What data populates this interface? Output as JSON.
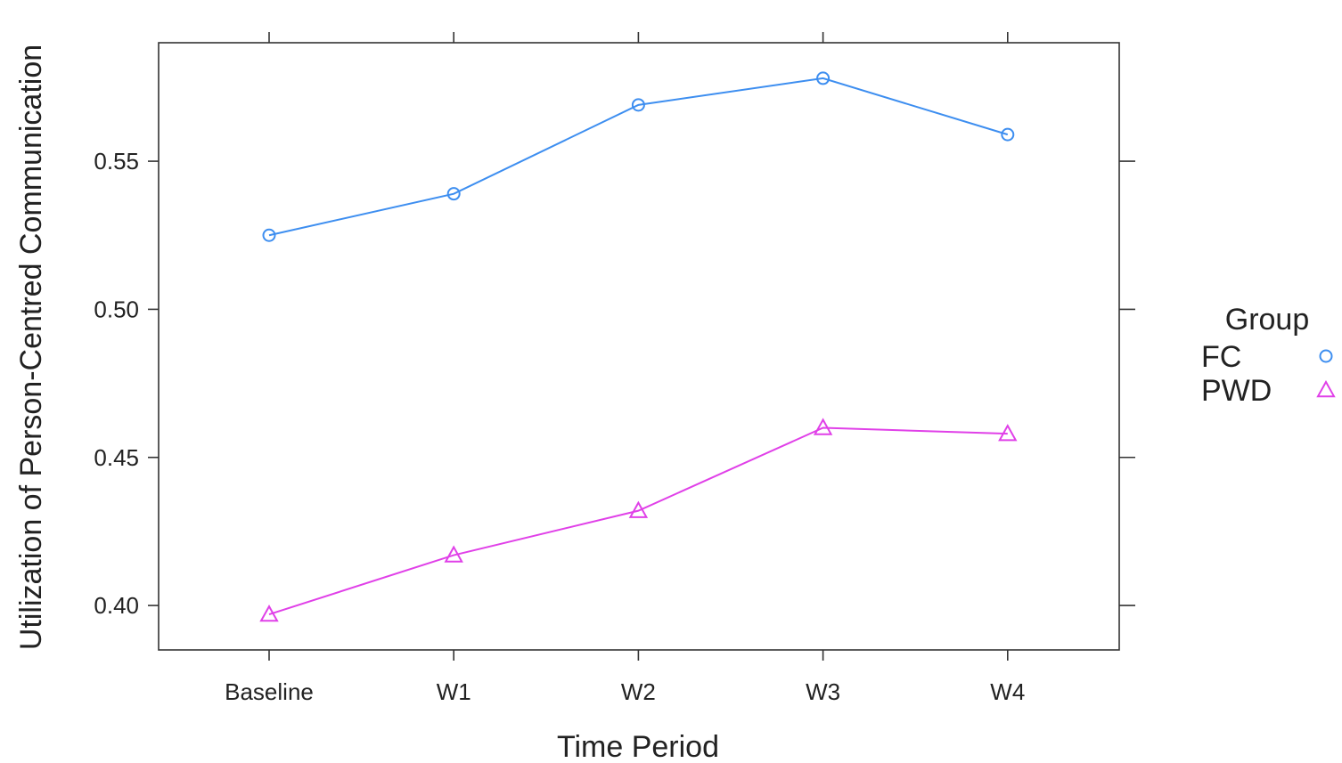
{
  "chart_data": {
    "type": "line",
    "xlabel": "Time Period",
    "ylabel": "Utilization of Person-Centred Communication",
    "categories": [
      "Baseline",
      "W1",
      "W2",
      "W3",
      "W4"
    ],
    "ylim": [
      0.385,
      0.59
    ],
    "yticks": [
      0.4,
      0.45,
      0.5,
      0.55
    ],
    "ytick_labels": [
      "0.40",
      "0.45",
      "0.50",
      "0.55"
    ],
    "legend": {
      "title": "Group",
      "position": "right"
    },
    "series": [
      {
        "name": "FC",
        "marker": "circle",
        "color": "#3d8ef0",
        "values": [
          0.525,
          0.539,
          0.569,
          0.578,
          0.559
        ]
      },
      {
        "name": "PWD",
        "marker": "triangle",
        "color": "#e040e8",
        "values": [
          0.397,
          0.417,
          0.432,
          0.46,
          0.458
        ]
      }
    ]
  }
}
